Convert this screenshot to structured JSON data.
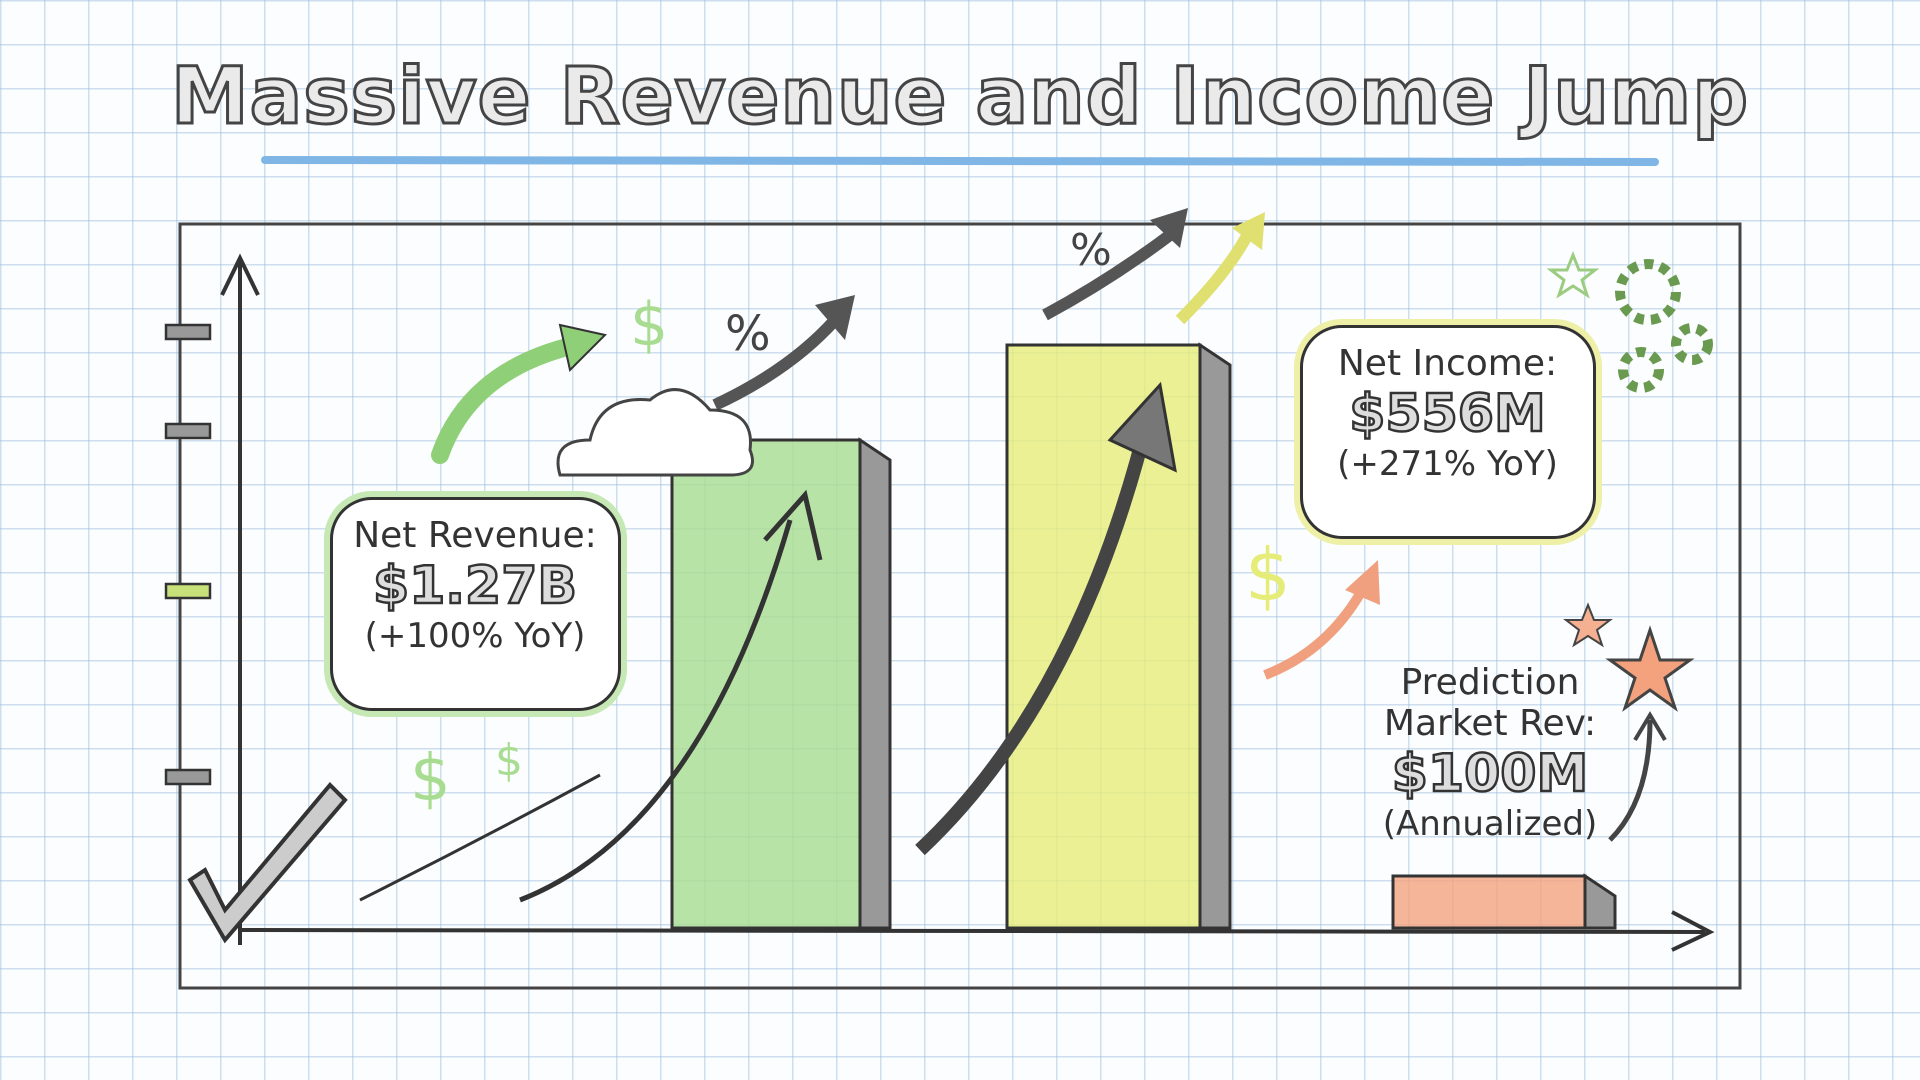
{
  "chart_data": {
    "type": "bar",
    "title": "Massive Revenue and Income Jump",
    "categories": [
      "Net Revenue",
      "Net Income",
      "Prediction Market Rev"
    ],
    "values": [
      1270,
      556,
      100
    ],
    "unit": "$M",
    "colors": [
      "#a8dc90",
      "#e6ec78",
      "#f4a27e"
    ],
    "annotations": [
      {
        "label": "Net Revenue:",
        "value": "$1.27B",
        "note": "(+100% YoY)"
      },
      {
        "label": "Net Income:",
        "value": "$556M",
        "note": "(+271% YoY)"
      },
      {
        "label": "Prediction",
        "label2": "Market Rev:",
        "value": "$100M",
        "note": "(Annualized)"
      }
    ],
    "grid": true
  },
  "decor": {
    "percent": "%",
    "dollar": "$",
    "accent": "#7fb6e6"
  }
}
